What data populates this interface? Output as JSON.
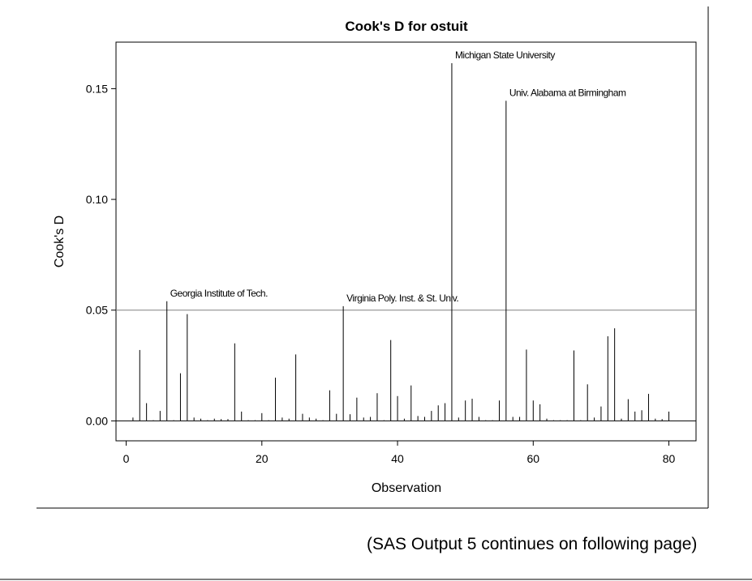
{
  "chart_data": {
    "type": "needle",
    "title": "Cook's D for ostuit",
    "xlabel": "Observation",
    "ylabel": "Cook's D",
    "xlim": [
      -1.5,
      84
    ],
    "ylim": [
      -0.009,
      0.171
    ],
    "xticks": [
      0,
      20,
      40,
      60,
      80
    ],
    "xtick_labels": [
      "0",
      "20",
      "40",
      "60",
      "80"
    ],
    "yticks": [
      0.0,
      0.05,
      0.1,
      0.15
    ],
    "ytick_labels": [
      "0.00",
      "0.05",
      "0.10",
      "0.15"
    ],
    "reference_line": 0.05,
    "x": [
      1,
      2,
      3,
      4,
      5,
      6,
      7,
      8,
      9,
      10,
      11,
      12,
      13,
      14,
      15,
      16,
      17,
      18,
      19,
      20,
      21,
      22,
      23,
      24,
      25,
      26,
      27,
      28,
      29,
      30,
      31,
      32,
      33,
      34,
      35,
      36,
      37,
      38,
      39,
      40,
      41,
      42,
      43,
      44,
      45,
      46,
      47,
      48,
      49,
      50,
      51,
      52,
      53,
      54,
      55,
      56,
      57,
      58,
      59,
      60,
      61,
      62,
      63,
      64,
      65,
      66,
      67,
      68,
      69,
      70,
      71,
      72,
      73,
      74,
      75,
      76,
      77,
      78,
      79,
      80
    ],
    "values": [
      0.0015,
      0.032,
      0.008,
      0.0003,
      0.0045,
      0.054,
      0.0003,
      0.0215,
      0.0482,
      0.0015,
      0.001,
      0.0003,
      0.001,
      0.0008,
      0.0008,
      0.035,
      0.0042,
      0.0003,
      0.0003,
      0.0035,
      0.0003,
      0.0195,
      0.0015,
      0.001,
      0.03,
      0.0032,
      0.0015,
      0.001,
      0.0003,
      0.0138,
      0.0032,
      0.0518,
      0.003,
      0.0105,
      0.0015,
      0.0018,
      0.0125,
      0.0003,
      0.0365,
      0.0112,
      0.001,
      0.016,
      0.0022,
      0.0018,
      0.0045,
      0.007,
      0.008,
      0.1615,
      0.0015,
      0.0092,
      0.01,
      0.0018,
      0.0003,
      0.0003,
      0.0092,
      0.1445,
      0.0018,
      0.0018,
      0.0322,
      0.0092,
      0.0075,
      0.001,
      0.0003,
      0.0003,
      0.0003,
      0.0318,
      0.0003,
      0.0165,
      0.0015,
      0.0065,
      0.0382,
      0.0418,
      0.001,
      0.0098,
      0.0042,
      0.0048,
      0.0122,
      0.001,
      0.0008,
      0.0042
    ],
    "annotations": [
      {
        "x": 6,
        "y": 0.054,
        "text": "Georgia Institute of Tech."
      },
      {
        "x": 32,
        "y": 0.0518,
        "text": "Virginia Poly. Inst. & St. Univ."
      },
      {
        "x": 48,
        "y": 0.1615,
        "text": "Michigan State University"
      },
      {
        "x": 56,
        "y": 0.1445,
        "text": "Univ. Alabama at Birmingham"
      }
    ],
    "grid": false,
    "legend": "none"
  },
  "footer": {
    "note": "(SAS Output 5 continues on following page)"
  }
}
